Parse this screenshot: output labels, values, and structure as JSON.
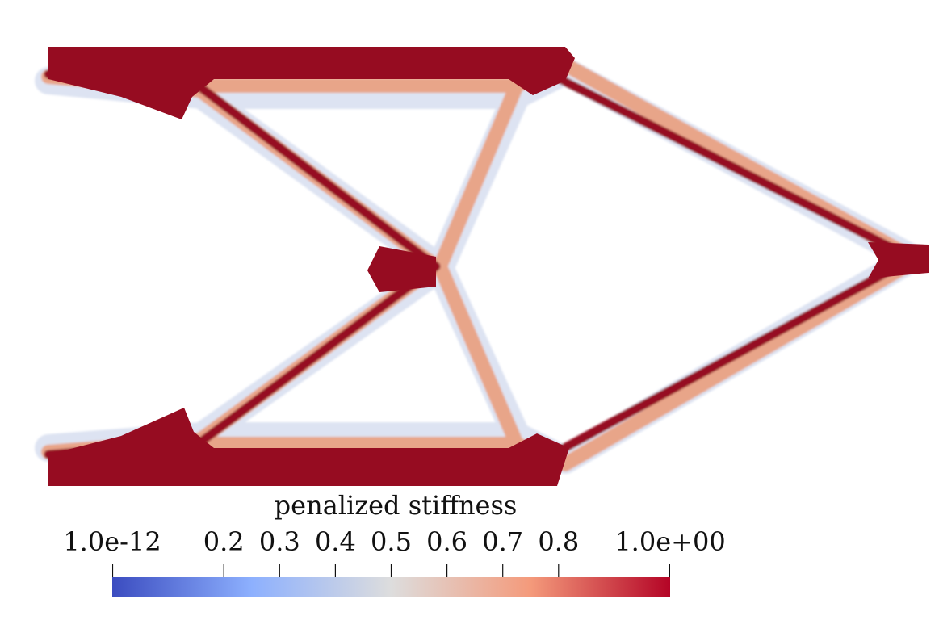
{
  "legend": {
    "title": "penalized stiffness",
    "ticks": [
      {
        "label": "1.0e-12",
        "value": 0.0
      },
      {
        "label": "0.2",
        "value": 0.2
      },
      {
        "label": "0.3",
        "value": 0.3
      },
      {
        "label": "0.4",
        "value": 0.4
      },
      {
        "label": "0.5",
        "value": 0.5
      },
      {
        "label": "0.6",
        "value": 0.6
      },
      {
        "label": "0.7",
        "value": 0.7
      },
      {
        "label": "0.8",
        "value": 0.8
      },
      {
        "label": "1.0e+00",
        "value": 1.0
      }
    ],
    "range": [
      0,
      1
    ],
    "colormap": [
      "#3b4cc0",
      "#8db0fe",
      "#dddddd",
      "#f49a7b",
      "#b40426"
    ],
    "high_color": "#960c21"
  }
}
